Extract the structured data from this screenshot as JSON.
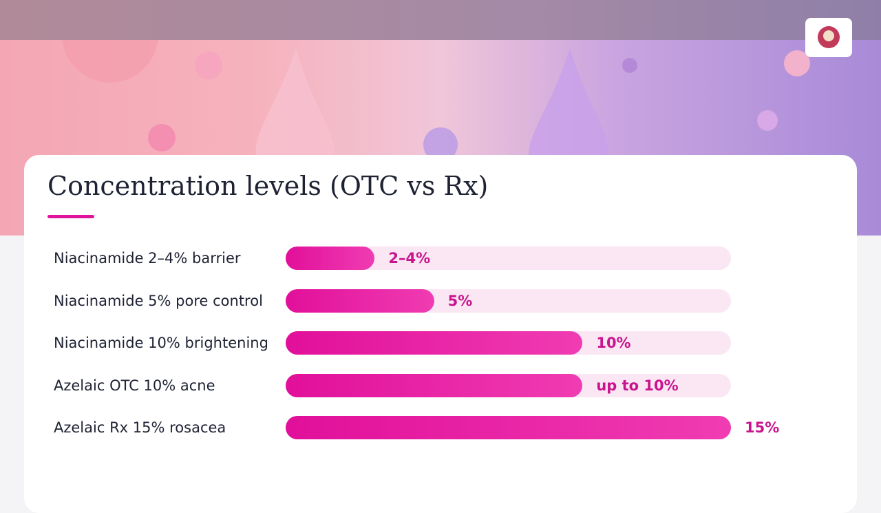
{
  "chart_data": {
    "type": "bar",
    "orientation": "horizontal",
    "title": "Concentration levels (OTC vs Rx)",
    "categories": [
      "Niacinamide 2–4% barrier",
      "Niacinamide 5% pore control",
      "Niacinamide 10% brightening",
      "Azelaic OTC 10% acne",
      "Azelaic Rx 15% rosacea"
    ],
    "values": [
      3,
      5,
      10,
      10,
      15
    ],
    "value_labels": [
      "2–4%",
      "5%",
      "10%",
      "up to 10%",
      "15%"
    ],
    "color": "#e10f9a",
    "xlim": [
      0,
      15
    ]
  }
}
